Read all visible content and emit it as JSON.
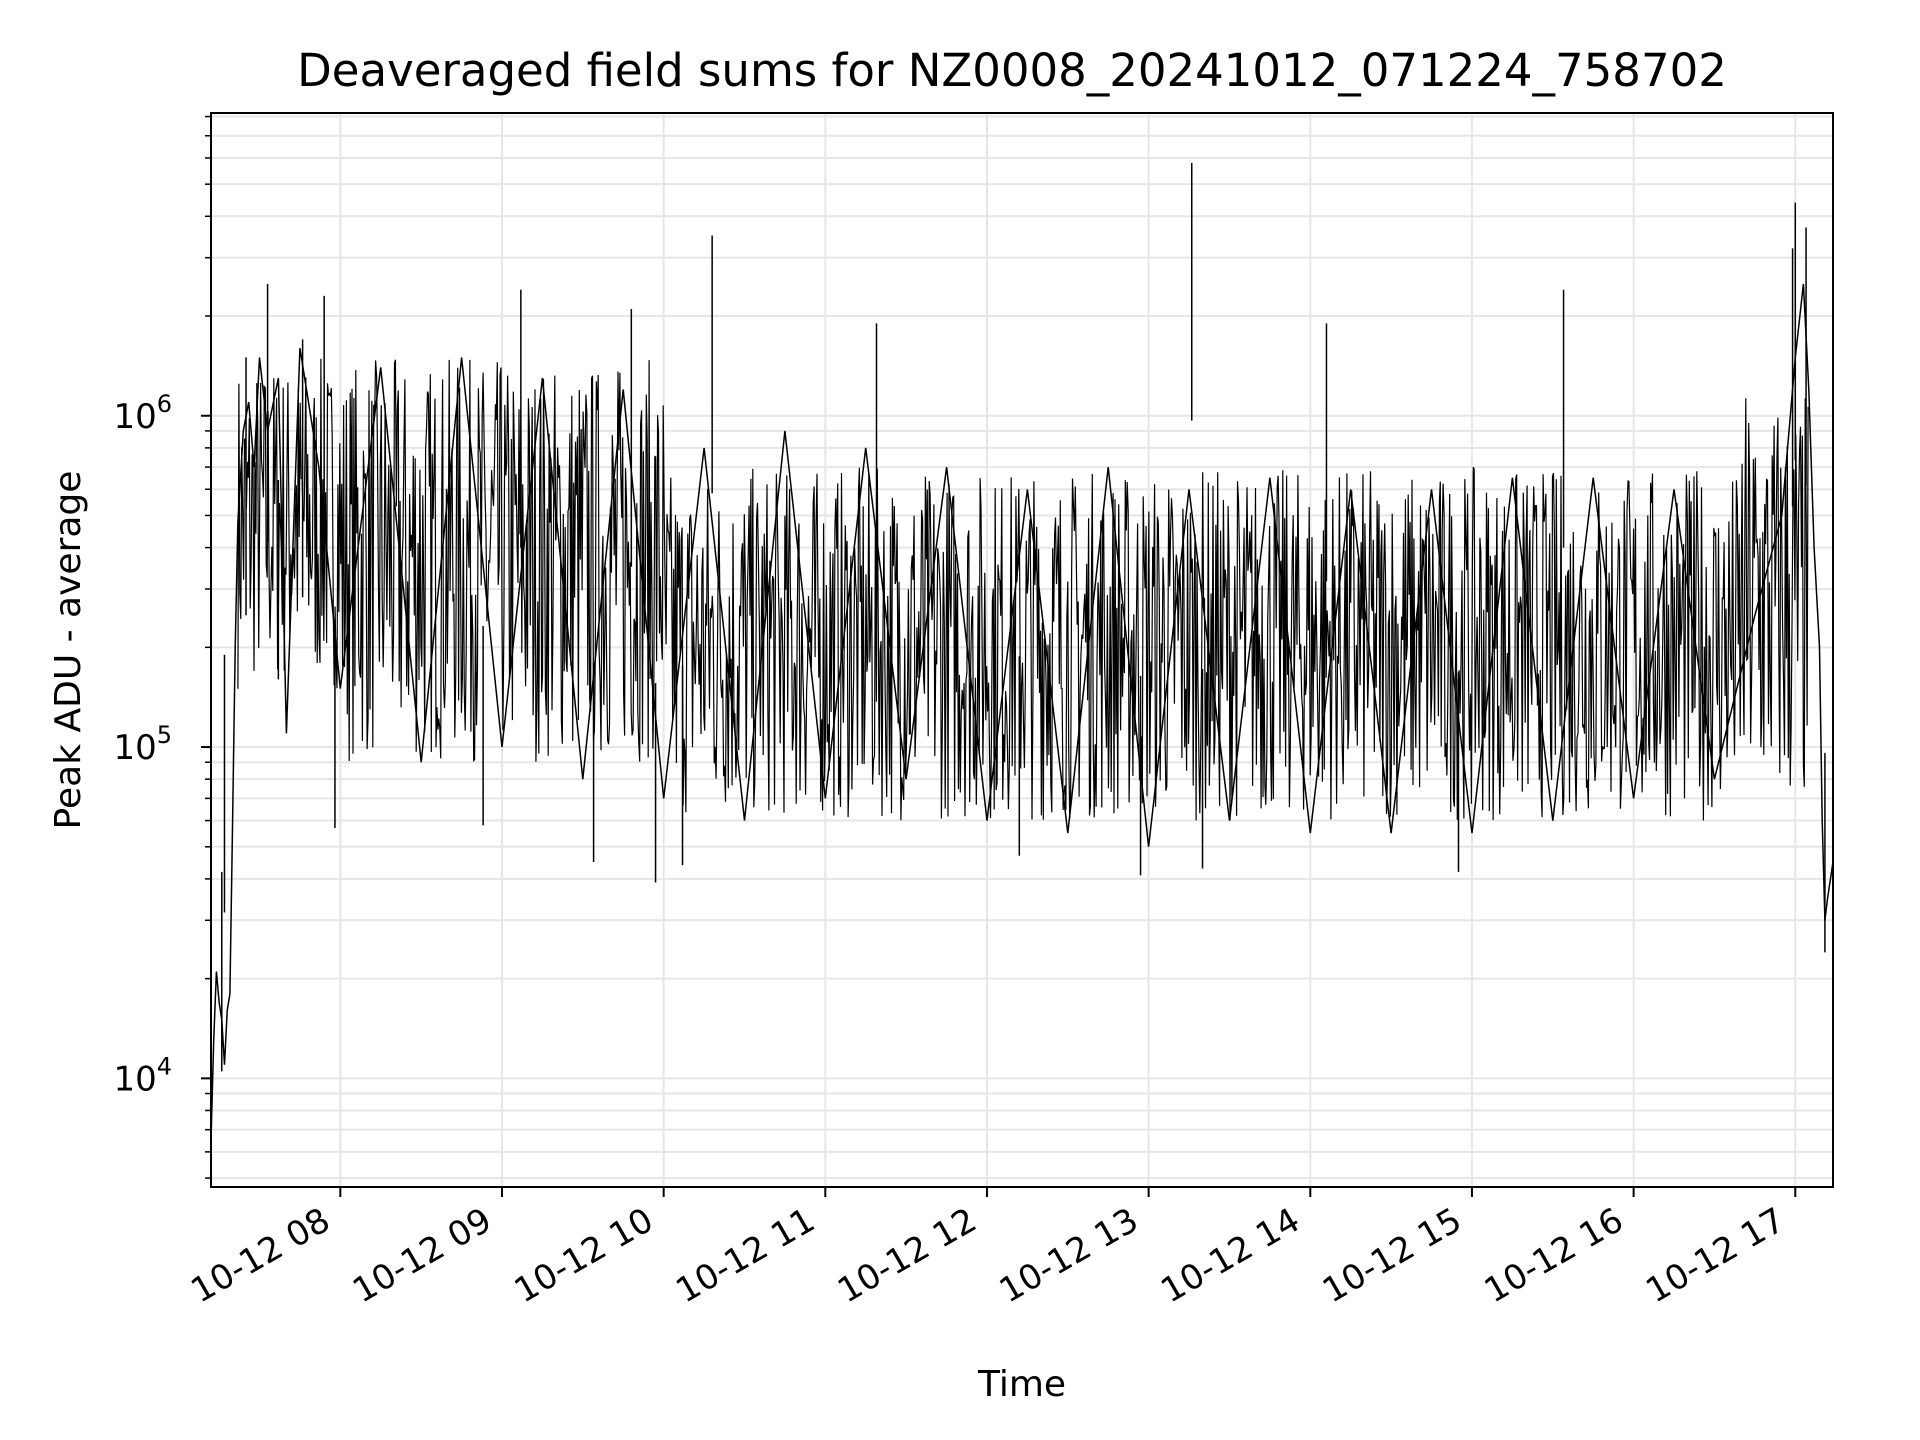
{
  "chart_data": {
    "type": "line",
    "title": "Deaveraged field sums for NZ0008_20241012_071224_758702",
    "xlabel": "Time",
    "ylabel": "Peak ADU - average",
    "x_scale": "time",
    "y_scale": "log",
    "xlim": [
      "10-12 07:12",
      "10-12 17:14"
    ],
    "ylim": [
      4700,
      8200000
    ],
    "grid": true,
    "line_color": "#000000",
    "grid_color": "#e6e6e6",
    "x_ticks": [
      "10-12 08",
      "10-12 09",
      "10-12 10",
      "10-12 11",
      "10-12 12",
      "10-12 13",
      "10-12 14",
      "10-12 15",
      "10-12 16",
      "10-12 17"
    ],
    "y_ticks": [
      {
        "base": "10",
        "exp": "4"
      },
      {
        "base": "10",
        "exp": "5"
      },
      {
        "base": "10",
        "exp": "6"
      }
    ],
    "series": [
      {
        "points": [
          [
            "10-12 07:12",
            6500
          ],
          [
            "10-12 07:13",
            13000
          ],
          [
            "10-12 07:14",
            21000
          ],
          [
            "10-12 07:15",
            17000
          ],
          [
            "10-12 07:16",
            15000
          ],
          [
            "10-12 07:17",
            11000
          ],
          [
            "10-12 07:18",
            16000
          ],
          [
            "10-12 07:19",
            18000
          ],
          [
            "10-12 07:20",
            60000
          ],
          [
            "10-12 07:21",
            200000
          ],
          [
            "10-12 07:22",
            480000
          ],
          [
            "10-12 07:24",
            900000
          ],
          [
            "10-12 07:26",
            1100000
          ],
          [
            "10-12 07:28",
            700000
          ],
          [
            "10-12 07:30",
            1500000
          ],
          [
            "10-12 07:33",
            900000
          ],
          [
            "10-12 07:37",
            1300000
          ],
          [
            "10-12 07:40",
            110000
          ],
          [
            "10-12 07:45",
            1600000
          ],
          [
            "10-12 07:52",
            700000
          ],
          [
            "10-12 08:00",
            150000
          ],
          [
            "10-12 08:15",
            1400000
          ],
          [
            "10-12 08:30",
            90000
          ],
          [
            "10-12 08:45",
            1500000
          ],
          [
            "10-12 09:00",
            100000
          ],
          [
            "10-12 09:15",
            1300000
          ],
          [
            "10-12 09:30",
            80000
          ],
          [
            "10-12 09:45",
            1200000
          ],
          [
            "10-12 10:00",
            70000
          ],
          [
            "10-12 10:15",
            800000
          ],
          [
            "10-12 10:30",
            60000
          ],
          [
            "10-12 10:45",
            900000
          ],
          [
            "10-12 11:00",
            70000
          ],
          [
            "10-12 11:15",
            800000
          ],
          [
            "10-12 11:30",
            80000
          ],
          [
            "10-12 11:45",
            700000
          ],
          [
            "10-12 12:00",
            60000
          ],
          [
            "10-12 12:15",
            600000
          ],
          [
            "10-12 12:30",
            55000
          ],
          [
            "10-12 12:45",
            700000
          ],
          [
            "10-12 13:00",
            50000
          ],
          [
            "10-12 13:15",
            600000
          ],
          [
            "10-12 13:30",
            60000
          ],
          [
            "10-12 13:45",
            650000
          ],
          [
            "10-12 14:00",
            55000
          ],
          [
            "10-12 14:15",
            600000
          ],
          [
            "10-12 14:30",
            55000
          ],
          [
            "10-12 14:45",
            600000
          ],
          [
            "10-12 15:00",
            55000
          ],
          [
            "10-12 15:15",
            650000
          ],
          [
            "10-12 15:30",
            60000
          ],
          [
            "10-12 15:45",
            650000
          ],
          [
            "10-12 16:00",
            70000
          ],
          [
            "10-12 16:15",
            600000
          ],
          [
            "10-12 16:30",
            80000
          ],
          [
            "10-12 16:45",
            250000
          ],
          [
            "10-12 16:55",
            500000
          ],
          [
            "10-12 17:00",
            1500000
          ],
          [
            "10-12 17:03",
            2500000
          ],
          [
            "10-12 17:05",
            1200000
          ],
          [
            "10-12 17:07",
            400000
          ],
          [
            "10-12 17:09",
            200000
          ],
          [
            "10-12 17:10",
            60000
          ],
          [
            "10-12 17:11",
            30000
          ],
          [
            "10-12 17:12",
            35000
          ],
          [
            "10-12 17:14",
            45000
          ]
        ]
      }
    ],
    "spikes": [
      [
        "10-12 07:17",
        190000
      ],
      [
        "10-12 07:25",
        1500000
      ],
      [
        "10-12 07:33",
        2500000
      ],
      [
        "10-12 07:46",
        1700000
      ],
      [
        "10-12 07:54",
        2300000
      ],
      [
        "10-12 09:07",
        2400000
      ],
      [
        "10-12 09:48",
        2100000
      ],
      [
        "10-12 10:18",
        3500000
      ],
      [
        "10-12 11:19",
        1900000
      ],
      [
        "10-12 13:16",
        5800000
      ],
      [
        "10-12 14:06",
        1900000
      ],
      [
        "10-12 15:34",
        2400000
      ],
      [
        "10-12 16:59",
        3200000
      ],
      [
        "10-12 17:00",
        4400000
      ],
      [
        "10-12 17:04",
        3700000
      ]
    ],
    "troughs": [
      [
        "10-12 07:16",
        10500
      ],
      [
        "10-12 07:37",
        160000
      ],
      [
        "10-12 07:58",
        57000
      ],
      [
        "10-12 08:53",
        58000
      ],
      [
        "10-12 09:34",
        45000
      ],
      [
        "10-12 09:57",
        39000
      ],
      [
        "10-12 10:07",
        44000
      ],
      [
        "10-12 12:12",
        47000
      ],
      [
        "10-12 12:57",
        41000
      ],
      [
        "10-12 13:20",
        43000
      ],
      [
        "10-12 14:55",
        42000
      ],
      [
        "10-12 17:11",
        24000
      ]
    ]
  }
}
